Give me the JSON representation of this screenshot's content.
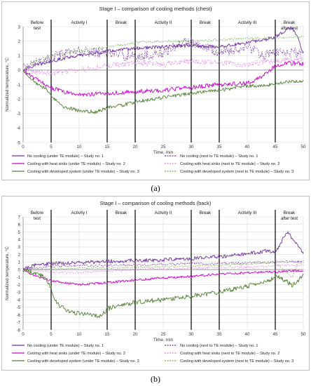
{
  "chart_data": [
    {
      "type": "line",
      "panel_label": "(a)",
      "title": "Stage I – comparison of cooling methods (chest)",
      "xlabel": "Time, min",
      "ylabel": "Normalized temperature, °C",
      "xlim": [
        0,
        50
      ],
      "ylim": [
        -5,
        3
      ],
      "xticks": [
        0,
        5,
        10,
        15,
        20,
        25,
        30,
        35,
        40,
        45,
        50
      ],
      "yticks": [
        -5,
        -4,
        -3,
        -2,
        -1,
        0,
        1,
        2,
        3
      ],
      "grid": true,
      "legend_position": "bottom",
      "phases": [
        {
          "label": "Before\ntest",
          "start": 0,
          "end": 5
        },
        {
          "label": "Activity I",
          "start": 5,
          "end": 15
        },
        {
          "label": "Break",
          "start": 15,
          "end": 20
        },
        {
          "label": "Activity II",
          "start": 20,
          "end": 30
        },
        {
          "label": "Break",
          "start": 30,
          "end": 35
        },
        {
          "label": "Activity III",
          "start": 35,
          "end": 45
        },
        {
          "label": "Break\nafter test",
          "start": 45,
          "end": 50
        }
      ],
      "series": [
        {
          "name": "No cooling (under TE module) – Study no. 1",
          "color": "#7030a0",
          "dashed": false,
          "noise": 0.12,
          "x": [
            0,
            2,
            5,
            8,
            10,
            15,
            20,
            25,
            30,
            35,
            40,
            43,
            45,
            47,
            48,
            49,
            50
          ],
          "y": [
            0.0,
            0.3,
            0.6,
            0.9,
            1.0,
            1.3,
            1.5,
            1.6,
            1.7,
            1.6,
            1.9,
            2.1,
            2.3,
            2.8,
            2.9,
            2.3,
            1.2
          ]
        },
        {
          "name": "No cooling (next to TE module) – Study no. 1",
          "color": "#7030a0",
          "dashed": true,
          "noise": 0.35,
          "x": [
            0,
            5,
            10,
            15,
            20,
            25,
            28,
            30,
            33,
            35,
            38,
            40,
            43,
            45,
            48,
            50
          ],
          "y": [
            0.1,
            0.9,
            1.3,
            1.2,
            0.9,
            1.2,
            1.8,
            2.0,
            1.6,
            1.2,
            1.4,
            1.6,
            1.0,
            1.2,
            1.3,
            1.1
          ]
        },
        {
          "name": "Cooling with heat sinks (under TE module) – Study no. 2",
          "color": "#cc00cc",
          "dashed": false,
          "noise": 0.15,
          "x": [
            0,
            1,
            3,
            5,
            7,
            10,
            15,
            20,
            25,
            30,
            35,
            40,
            42,
            45,
            47,
            50
          ],
          "y": [
            0.0,
            -0.3,
            -0.8,
            -1.2,
            -1.5,
            -1.7,
            -1.6,
            -1.5,
            -1.4,
            -1.2,
            -1.0,
            -0.9,
            -0.6,
            0.3,
            0.5,
            0.4
          ]
        },
        {
          "name": "Cooling with heat sinks (next to TE module) – Study no. 2",
          "color": "#e07be0",
          "dashed": true,
          "noise": 0.2,
          "x": [
            0,
            5,
            10,
            15,
            20,
            25,
            30,
            35,
            40,
            45,
            50
          ],
          "y": [
            0.0,
            -0.2,
            0.0,
            0.3,
            0.5,
            0.4,
            0.6,
            0.5,
            0.4,
            0.6,
            0.8
          ]
        },
        {
          "name": "Cooling with developed system (under TE module) – Study no. 3",
          "color": "#538135",
          "dashed": false,
          "noise": 0.12,
          "x": [
            0,
            2,
            4,
            5,
            7,
            10,
            13,
            15,
            18,
            20,
            25,
            30,
            35,
            40,
            45,
            47,
            50
          ],
          "y": [
            0.0,
            -0.8,
            -1.3,
            -1.8,
            -2.5,
            -2.8,
            -2.9,
            -2.6,
            -2.4,
            -2.2,
            -1.9,
            -1.6,
            -1.4,
            -1.1,
            -1.0,
            -0.8,
            -0.8
          ]
        },
        {
          "name": "Cooling with developed system (next to TE module) – Study no. 3",
          "color": "#70ad47",
          "dashed": true,
          "noise": 0.08,
          "x": [
            0,
            2,
            5,
            10,
            15,
            20,
            25,
            30,
            35,
            40,
            45,
            50
          ],
          "y": [
            0.0,
            0.6,
            1.0,
            1.3,
            1.6,
            1.9,
            2.0,
            2.0,
            2.1,
            2.2,
            2.2,
            2.3
          ]
        }
      ]
    },
    {
      "type": "line",
      "panel_label": "(b)",
      "title": "Stage I – comparison of cooling methods (back)",
      "xlabel": "Time, min",
      "ylabel": "Normalized temperature, °C",
      "xlim": [
        0,
        50
      ],
      "ylim": [
        -8,
        7
      ],
      "xticks": [
        0,
        5,
        10,
        15,
        20,
        25,
        30,
        35,
        40,
        45,
        50
      ],
      "yticks": [
        -8,
        -7,
        -6,
        -5,
        -4,
        -3,
        -2,
        -1,
        0,
        1,
        2,
        3,
        4,
        5,
        6,
        7
      ],
      "grid": true,
      "legend_position": "bottom",
      "phases": [
        {
          "label": "Before\ntest",
          "start": 0,
          "end": 5
        },
        {
          "label": "Activity I",
          "start": 5,
          "end": 15
        },
        {
          "label": "Break",
          "start": 15,
          "end": 20
        },
        {
          "label": "Activity II",
          "start": 20,
          "end": 30
        },
        {
          "label": "Break",
          "start": 30,
          "end": 35
        },
        {
          "label": "Activity III",
          "start": 35,
          "end": 45
        },
        {
          "label": "Break\nafter test",
          "start": 45,
          "end": 50
        }
      ],
      "series": [
        {
          "name": "No cooling (under TE module) – Study no. 1",
          "color": "#7030a0",
          "dashed": false,
          "noise": 0.25,
          "x": [
            0,
            2,
            5,
            10,
            15,
            20,
            25,
            30,
            35,
            40,
            44,
            45,
            46,
            47,
            48,
            49,
            50
          ],
          "y": [
            0.0,
            0.6,
            0.8,
            0.9,
            1.1,
            1.2,
            1.3,
            1.5,
            1.7,
            2.1,
            2.5,
            2.2,
            3.5,
            5.0,
            4.2,
            3.2,
            2.2
          ]
        },
        {
          "name": "No cooling (next to TE module) – Study no. 1",
          "color": "#7030a0",
          "dashed": true,
          "noise": 0.15,
          "x": [
            0,
            5,
            10,
            15,
            20,
            25,
            30,
            35,
            40,
            45,
            50
          ],
          "y": [
            0.0,
            0.4,
            0.5,
            0.6,
            0.6,
            0.7,
            0.8,
            0.8,
            0.9,
            1.0,
            1.1
          ]
        },
        {
          "name": "Cooling with heat sinks (under TE module) – Study no. 2",
          "color": "#cc00cc",
          "dashed": false,
          "noise": 0.15,
          "x": [
            0,
            2,
            5,
            10,
            15,
            20,
            25,
            30,
            35,
            40,
            45,
            50
          ],
          "y": [
            0.0,
            -0.8,
            -1.5,
            -2.0,
            -1.7,
            -1.4,
            -1.1,
            -0.9,
            -0.6,
            -0.4,
            -0.3,
            -0.1
          ]
        },
        {
          "name": "Cooling with heat sinks (next to TE module) – Study no. 2",
          "color": "#e07be0",
          "dashed": true,
          "noise": 0.15,
          "x": [
            0,
            5,
            10,
            15,
            20,
            25,
            30,
            35,
            40,
            45,
            50
          ],
          "y": [
            0.0,
            -0.3,
            -0.4,
            -0.2,
            0.0,
            0.1,
            0.2,
            0.3,
            0.3,
            0.5,
            0.6
          ]
        },
        {
          "name": "Cooling with developed system (under TE module) – Study no. 3",
          "color": "#538135",
          "dashed": false,
          "noise": 0.3,
          "x": [
            0,
            2,
            4,
            5,
            6,
            8,
            10,
            12,
            14,
            15,
            17,
            20,
            25,
            30,
            35,
            40,
            44,
            45,
            47,
            48,
            50
          ],
          "y": [
            0.0,
            -0.5,
            -1.0,
            -2.5,
            -4.5,
            -5.5,
            -5.8,
            -6.0,
            -6.2,
            -5.2,
            -4.8,
            -4.3,
            -4.0,
            -3.5,
            -3.0,
            -2.2,
            -1.5,
            -0.8,
            -1.5,
            -2.2,
            -0.8
          ]
        },
        {
          "name": "Cooling with developed system (next to TE module) – Study no. 3",
          "color": "#70ad47",
          "dashed": true,
          "noise": 0.1,
          "x": [
            0,
            5,
            10,
            15,
            20,
            25,
            30,
            35,
            40,
            45,
            48,
            49,
            50
          ],
          "y": [
            0.0,
            0.1,
            0.2,
            0.2,
            0.3,
            0.4,
            0.5,
            0.6,
            0.7,
            0.9,
            -1.0,
            0.8,
            1.0
          ]
        }
      ]
    }
  ]
}
